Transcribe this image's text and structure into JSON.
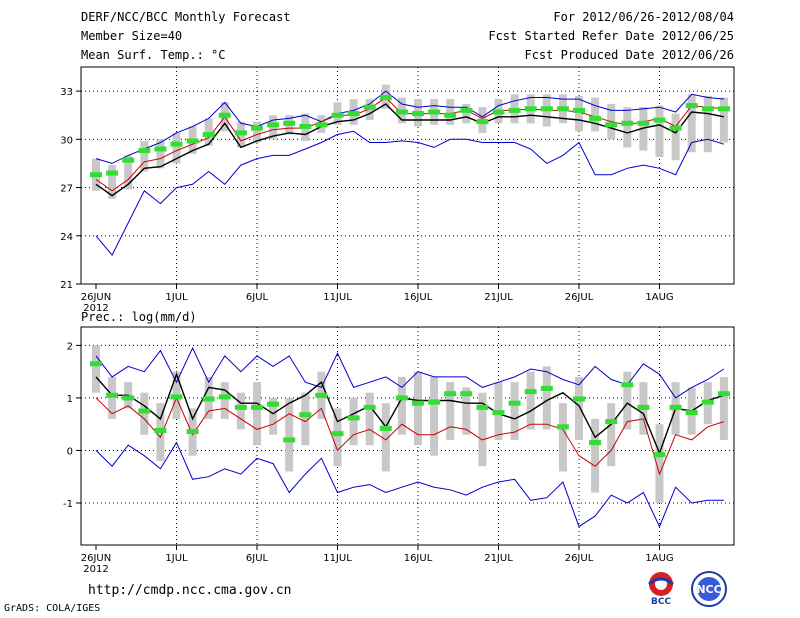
{
  "header": {
    "title": "DERF/NCC/BCC Monthly Forecast",
    "member_size": "Member Size=40",
    "variable_top": "Mean Surf. Temp.: °C",
    "period": "For 2012/06/26-2012/08/04",
    "started": "Fcst Started Refer Date 2012/06/25",
    "produced": "Fcst Produced Date 2012/06/26"
  },
  "footer": {
    "url": "http://cmdp.ncc.cma.gov.cn",
    "grads": "GrADS: COLA/IGES",
    "logo_bcc": "BCC",
    "logo_ncc": "NCC"
  },
  "colors": {
    "max_min": "#0000cc",
    "mean": "#000000",
    "median": "#cc0000",
    "box": "#c8c8c8",
    "obs": "#33dd33"
  },
  "chart_data": [
    {
      "type": "line",
      "title": "Mean Surf. Temp.: °C",
      "x_ticks": [
        "26JUN",
        "1JUL",
        "6JUL",
        "11JUL",
        "16JUL",
        "21JUL",
        "26JUL",
        "1AUG"
      ],
      "x_tick_year": "2012",
      "x_tick_index": [
        0,
        5,
        10,
        15,
        20,
        25,
        30,
        35
      ],
      "ylim": [
        21,
        34.5
      ],
      "y_ticks": [
        21,
        24,
        27,
        30,
        33
      ],
      "days": 40,
      "series": [
        {
          "name": "max",
          "color": "#0000cc",
          "values": [
            28.8,
            28.5,
            29.0,
            29.4,
            29.8,
            30.4,
            30.8,
            31.3,
            32.3,
            31.0,
            30.8,
            31.2,
            31.3,
            31.5,
            31.1,
            31.6,
            31.8,
            32.2,
            33.0,
            32.2,
            32.0,
            32.1,
            32.0,
            32.0,
            31.4,
            32.1,
            32.4,
            32.6,
            32.6,
            32.5,
            32.5,
            32.1,
            31.8,
            31.8,
            31.9,
            32.0,
            31.7,
            32.8,
            32.6,
            32.5
          ]
        },
        {
          "name": "mean",
          "color": "#000000",
          "values": [
            27.2,
            26.5,
            27.2,
            28.2,
            28.3,
            28.8,
            29.3,
            29.7,
            31.0,
            29.5,
            29.9,
            30.2,
            30.4,
            30.3,
            30.8,
            31.1,
            31.2,
            31.6,
            32.2,
            31.2,
            31.2,
            31.2,
            31.2,
            31.4,
            31.0,
            31.4,
            31.4,
            31.5,
            31.4,
            31.3,
            31.2,
            31.0,
            30.7,
            30.4,
            30.7,
            30.9,
            30.4,
            31.7,
            31.6,
            31.4
          ]
        },
        {
          "name": "median",
          "color": "#cc0000",
          "values": [
            27.5,
            26.8,
            27.5,
            28.6,
            28.8,
            29.3,
            29.7,
            30.1,
            31.4,
            29.9,
            30.3,
            30.6,
            30.7,
            30.7,
            31.1,
            31.5,
            31.5,
            31.9,
            32.6,
            31.6,
            31.6,
            31.6,
            31.6,
            31.8,
            31.3,
            31.8,
            31.8,
            31.9,
            31.8,
            31.8,
            31.7,
            31.4,
            31.1,
            30.9,
            31.1,
            31.3,
            30.8,
            32.1,
            32.0,
            31.9
          ]
        },
        {
          "name": "min",
          "color": "#0000cc",
          "values": [
            24.0,
            22.8,
            24.8,
            26.8,
            26.0,
            27.0,
            27.2,
            28.0,
            27.2,
            28.4,
            28.8,
            29.0,
            29.0,
            29.4,
            29.8,
            30.3,
            30.5,
            29.8,
            29.8,
            29.9,
            29.8,
            29.5,
            30.0,
            30.0,
            29.8,
            29.8,
            29.8,
            29.4,
            28.5,
            29.0,
            29.8,
            27.8,
            27.8,
            28.2,
            28.4,
            28.2,
            27.8,
            29.8,
            30.0,
            29.7
          ]
        },
        {
          "name": "obs",
          "color": "#33dd33",
          "values": [
            27.8,
            27.9,
            28.7,
            29.3,
            29.4,
            29.7,
            29.9,
            30.3,
            31.5,
            30.4,
            30.7,
            30.9,
            31.0,
            30.8,
            30.9,
            31.5,
            31.6,
            32.0,
            32.6,
            31.7,
            31.6,
            31.7,
            31.5,
            31.8,
            31.1,
            31.7,
            31.8,
            31.9,
            31.9,
            31.9,
            31.8,
            31.3,
            30.9,
            31.0,
            31.0,
            31.2,
            30.7,
            32.1,
            31.9,
            31.9
          ]
        }
      ],
      "box_ranges": [
        [
          26.8,
          28.8
        ],
        [
          26.3,
          28.4
        ],
        [
          26.9,
          29.0
        ],
        [
          28.0,
          29.9
        ],
        [
          28.2,
          30.0
        ],
        [
          28.5,
          30.4
        ],
        [
          29.1,
          30.8
        ],
        [
          29.6,
          31.3
        ],
        [
          30.5,
          32.3
        ],
        [
          29.5,
          31.1
        ],
        [
          29.8,
          31.1
        ],
        [
          30.0,
          31.5
        ],
        [
          30.3,
          31.5
        ],
        [
          29.9,
          31.6
        ],
        [
          30.4,
          31.5
        ],
        [
          30.9,
          32.3
        ],
        [
          30.9,
          32.5
        ],
        [
          31.2,
          32.5
        ],
        [
          31.9,
          33.4
        ],
        [
          31.0,
          32.6
        ],
        [
          30.8,
          32.5
        ],
        [
          30.9,
          32.5
        ],
        [
          30.9,
          32.5
        ],
        [
          31.0,
          32.2
        ],
        [
          30.4,
          32.0
        ],
        [
          31.0,
          32.5
        ],
        [
          31.0,
          32.8
        ],
        [
          31.0,
          32.8
        ],
        [
          30.8,
          32.8
        ],
        [
          31.0,
          32.8
        ],
        [
          30.5,
          32.7
        ],
        [
          30.5,
          32.6
        ],
        [
          30.0,
          32.2
        ],
        [
          29.5,
          32.0
        ],
        [
          29.3,
          32.0
        ],
        [
          28.9,
          32.1
        ],
        [
          28.7,
          31.6
        ],
        [
          29.2,
          32.8
        ],
        [
          29.2,
          32.7
        ],
        [
          29.8,
          32.6
        ]
      ]
    },
    {
      "type": "line",
      "title": "Prec.: log(mm/d)",
      "x_ticks": [
        "26JUN",
        "1JUL",
        "6JUL",
        "11JUL",
        "16JUL",
        "21JUL",
        "26JUL",
        "1AUG"
      ],
      "x_tick_year": "2012",
      "x_tick_index": [
        0,
        5,
        10,
        15,
        20,
        25,
        30,
        35
      ],
      "ylim": [
        -1.8,
        2.35
      ],
      "y_ticks": [
        -1,
        0,
        1,
        2
      ],
      "days": 40,
      "series": [
        {
          "name": "max",
          "color": "#0000cc",
          "values": [
            1.8,
            1.4,
            1.6,
            1.5,
            1.9,
            1.3,
            1.95,
            1.3,
            1.8,
            1.5,
            1.8,
            1.6,
            1.8,
            1.3,
            1.2,
            1.85,
            1.2,
            1.3,
            1.4,
            1.2,
            1.5,
            1.4,
            1.4,
            1.4,
            1.2,
            1.3,
            1.4,
            1.55,
            1.5,
            1.35,
            1.25,
            1.6,
            1.35,
            1.25,
            1.65,
            1.45,
            1.0,
            1.2,
            1.35,
            1.55
          ]
        },
        {
          "name": "mean",
          "color": "#000000",
          "values": [
            1.4,
            1.05,
            1.05,
            0.85,
            0.6,
            1.45,
            0.6,
            1.2,
            1.15,
            0.9,
            0.9,
            0.7,
            0.9,
            1.05,
            1.3,
            0.55,
            0.7,
            0.85,
            0.45,
            1.0,
            0.95,
            0.95,
            0.95,
            0.9,
            0.9,
            0.7,
            0.6,
            0.75,
            0.95,
            1.1,
            0.85,
            0.25,
            0.5,
            0.9,
            0.7,
            -0.05,
            0.8,
            0.75,
            0.95,
            1.05
          ]
        },
        {
          "name": "median",
          "color": "#cc0000",
          "values": [
            1.0,
            0.7,
            0.85,
            0.6,
            0.25,
            1.0,
            0.3,
            0.75,
            0.8,
            0.6,
            0.4,
            0.5,
            0.7,
            0.55,
            0.8,
            0.0,
            0.3,
            0.4,
            0.2,
            0.5,
            0.3,
            0.3,
            0.45,
            0.4,
            0.2,
            0.3,
            0.35,
            0.5,
            0.5,
            0.4,
            -0.1,
            -0.3,
            0.0,
            0.55,
            0.6,
            -0.45,
            0.3,
            0.2,
            0.45,
            0.55
          ]
        },
        {
          "name": "min",
          "color": "#0000cc",
          "values": [
            0.0,
            -0.3,
            0.1,
            -0.1,
            -0.35,
            0.15,
            -0.55,
            -0.5,
            -0.35,
            -0.45,
            -0.15,
            -0.25,
            -0.8,
            -0.45,
            -0.15,
            -0.8,
            -0.7,
            -0.65,
            -0.8,
            -0.7,
            -0.6,
            -0.7,
            -0.75,
            -0.85,
            -0.7,
            -0.6,
            -0.55,
            -0.95,
            -0.9,
            -0.6,
            -1.45,
            -1.25,
            -0.85,
            -1.0,
            -0.8,
            -1.45,
            -0.7,
            -1.0,
            -0.95,
            -0.95
          ]
        },
        {
          "name": "obs",
          "color": "#33dd33",
          "values": [
            1.65,
            1.05,
            1.0,
            0.75,
            0.38,
            1.02,
            0.36,
            0.98,
            1.02,
            0.82,
            0.82,
            0.88,
            0.2,
            0.68,
            1.05,
            0.32,
            0.62,
            0.82,
            0.42,
            1.0,
            0.9,
            0.92,
            1.08,
            1.08,
            0.82,
            0.72,
            0.9,
            1.12,
            1.18,
            0.45,
            0.98,
            0.15,
            0.55,
            1.25,
            0.82,
            -0.08,
            0.82,
            0.72,
            0.92,
            1.08
          ]
        }
      ],
      "box_ranges": [
        [
          1.1,
          2.0
        ],
        [
          0.6,
          1.4
        ],
        [
          0.8,
          1.3
        ],
        [
          0.3,
          1.1
        ],
        [
          -0.2,
          0.9
        ],
        [
          0.6,
          1.5
        ],
        [
          -0.1,
          0.8
        ],
        [
          0.6,
          1.4
        ],
        [
          0.6,
          1.3
        ],
        [
          0.4,
          1.1
        ],
        [
          0.1,
          1.3
        ],
        [
          0.3,
          1.0
        ],
        [
          -0.4,
          1.0
        ],
        [
          0.1,
          1.1
        ],
        [
          0.6,
          1.5
        ],
        [
          -0.3,
          0.8
        ],
        [
          0.1,
          1.0
        ],
        [
          0.1,
          1.1
        ],
        [
          -0.4,
          0.9
        ],
        [
          0.3,
          1.4
        ],
        [
          0.1,
          1.5
        ],
        [
          -0.1,
          1.4
        ],
        [
          0.2,
          1.3
        ],
        [
          0.3,
          1.2
        ],
        [
          -0.3,
          1.1
        ],
        [
          0.2,
          1.3
        ],
        [
          0.2,
          1.3
        ],
        [
          0.4,
          1.5
        ],
        [
          0.4,
          1.6
        ],
        [
          -0.4,
          0.9
        ],
        [
          0.2,
          1.4
        ],
        [
          -0.8,
          0.6
        ],
        [
          -0.3,
          0.9
        ],
        [
          0.4,
          1.5
        ],
        [
          0.3,
          1.3
        ],
        [
          -1.0,
          0.5
        ],
        [
          0.3,
          1.3
        ],
        [
          0.3,
          1.2
        ],
        [
          0.5,
          1.3
        ],
        [
          0.2,
          1.4
        ]
      ]
    }
  ]
}
